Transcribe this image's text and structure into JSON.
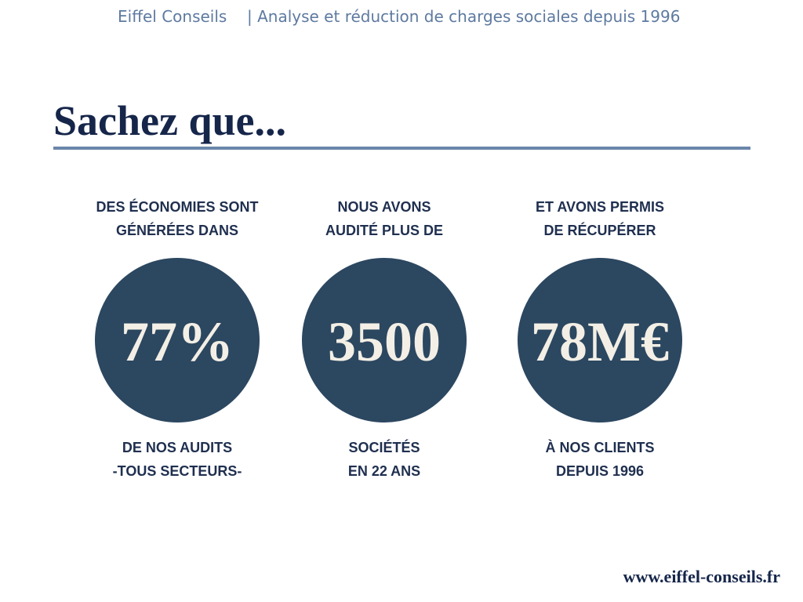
{
  "header": {
    "brand": "Eiffel Conseils",
    "tagline": "| Analyse et réduction de charges sociales depuis 1996"
  },
  "title": "Sachez que...",
  "stats": [
    {
      "top": [
        "DES ÉCONOMIES SONT",
        "GÉNÉRÉES DANS"
      ],
      "value": "77%",
      "bottom": [
        "DE NOS AUDITS",
        "-TOUS SECTEURS-"
      ]
    },
    {
      "top": [
        "NOUS AVONS",
        "AUDITÉ PLUS DE"
      ],
      "value": "3500",
      "bottom": [
        "SOCIÉTÉS",
        "EN 22 ANS"
      ]
    },
    {
      "top": [
        "ET AVONS PERMIS",
        "DE RÉCUPÉRER"
      ],
      "value": "78M€",
      "bottom": [
        "À NOS CLIENTS",
        "DEPUIS 1996"
      ]
    }
  ],
  "footer": {
    "url": "www.eiffel-conseils.fr"
  }
}
